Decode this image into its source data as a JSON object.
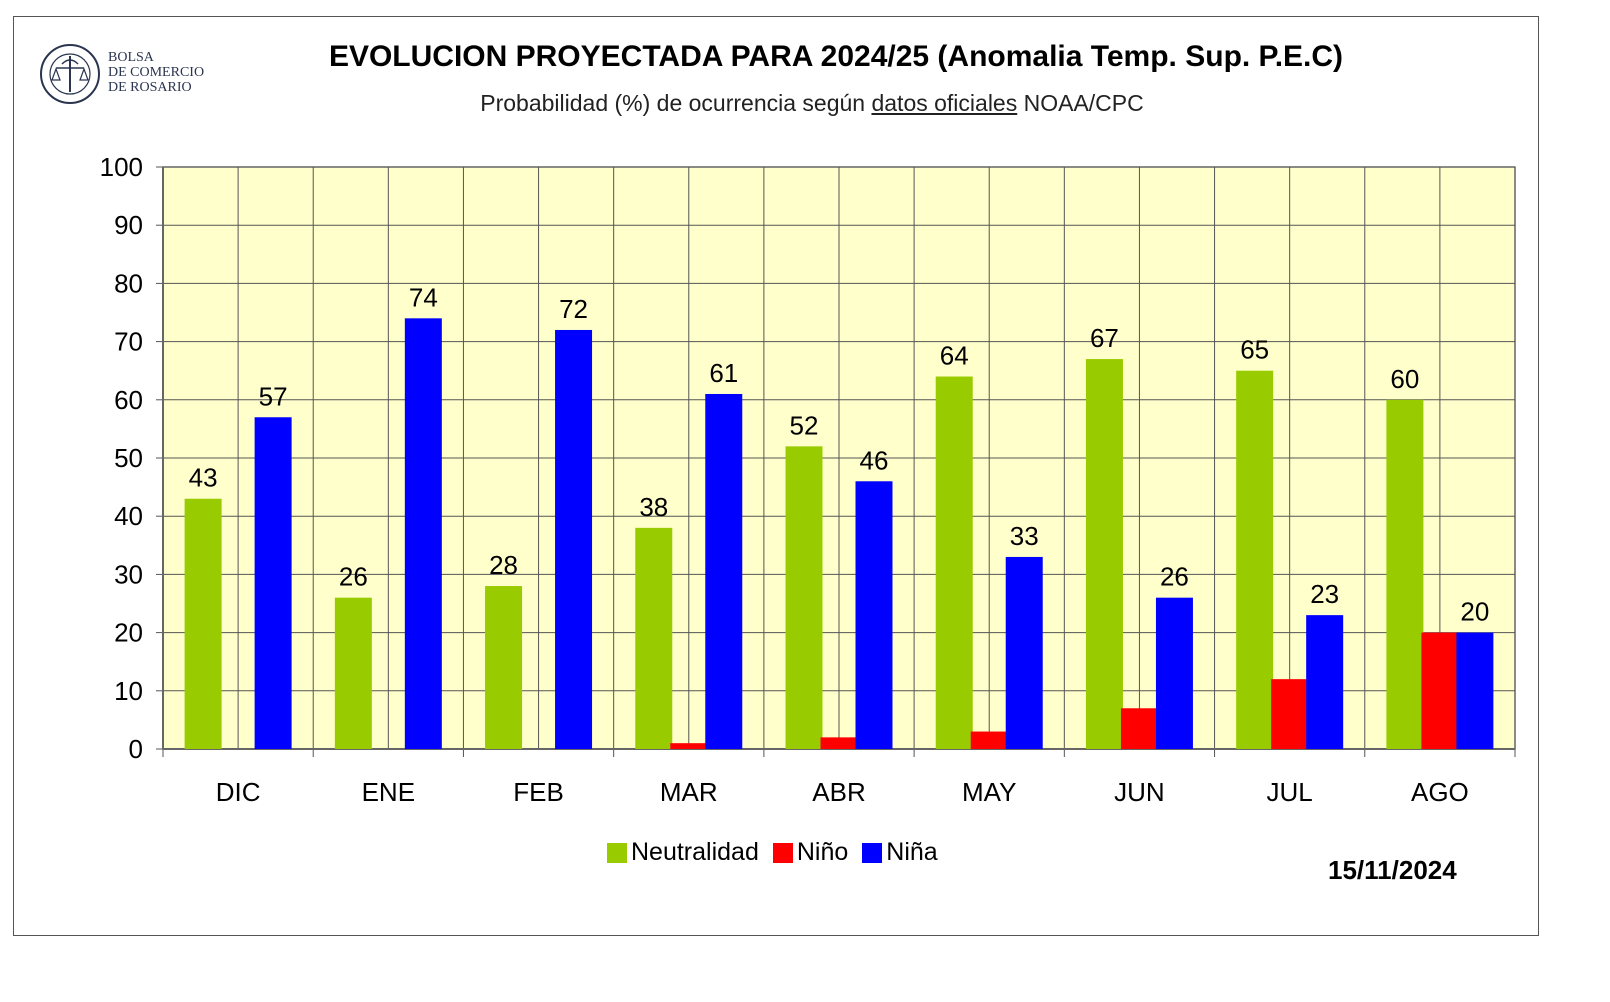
{
  "logo": {
    "icon": "bolsa-comercio-seal-icon",
    "lines": [
      "BOLSA",
      "DE COMERCIO",
      "DE ROSARIO"
    ]
  },
  "date": "15/11/2024",
  "colors": {
    "Neutralidad": "#99cc00",
    "Niño": "#ff0000",
    "Niña": "#0000ff",
    "plot_bg": "#ffffcc"
  },
  "chart_data": {
    "type": "bar",
    "title": "EVOLUCION PROYECTADA PARA 2024/25 (Anomalia Temp. Sup. P.E.C)",
    "subtitle_parts": [
      "Probabilidad (%) de ocurrencia según ",
      "datos oficiales",
      " NOAA/CPC"
    ],
    "xlabel": "",
    "ylabel": "",
    "ylim": [
      0,
      100
    ],
    "yticks": [
      0,
      10,
      20,
      30,
      40,
      50,
      60,
      70,
      80,
      90,
      100
    ],
    "grid": true,
    "legend_position": "bottom-center",
    "categories": [
      "DIC",
      "ENE",
      "FEB",
      "MAR",
      "ABR",
      "MAY",
      "JUN",
      "JUL",
      "AGO"
    ],
    "series": [
      {
        "name": "Neutralidad",
        "values": [
          43,
          26,
          28,
          38,
          52,
          64,
          67,
          65,
          60
        ],
        "labeled": true
      },
      {
        "name": "Niño",
        "values": [
          0,
          0,
          0,
          1,
          2,
          3,
          7,
          12,
          20
        ],
        "labeled": false
      },
      {
        "name": "Niña",
        "values": [
          57,
          74,
          72,
          61,
          46,
          33,
          26,
          23,
          20
        ],
        "labeled": true
      }
    ]
  }
}
